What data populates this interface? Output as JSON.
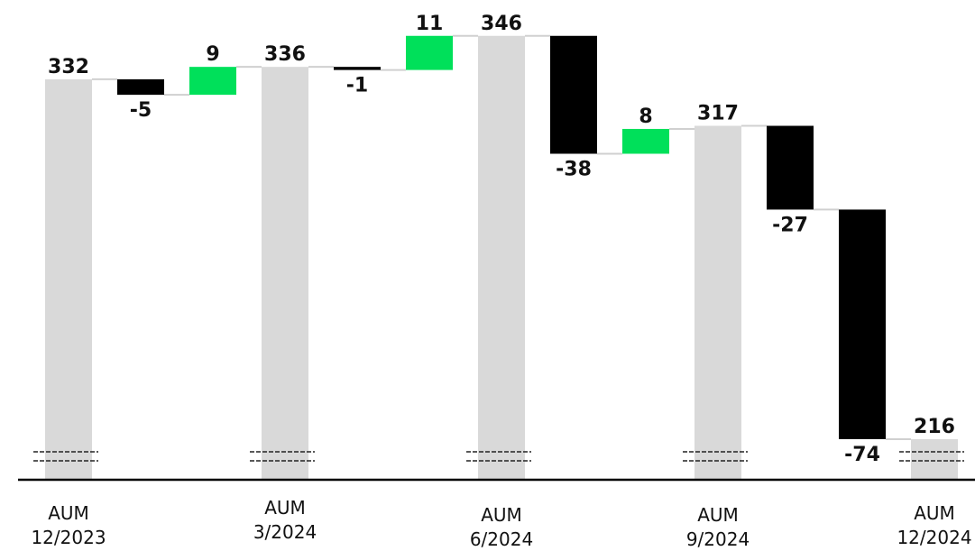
{
  "chart_data": {
    "type": "waterfall",
    "unit_note": "",
    "steps": [
      {
        "kind": "total",
        "value": 332,
        "label": "332",
        "category": [
          "AUM",
          "12/2023"
        ]
      },
      {
        "kind": "delta",
        "value": -5,
        "label": "-5"
      },
      {
        "kind": "delta",
        "value": 9,
        "label": "9"
      },
      {
        "kind": "total",
        "value": 336,
        "label": "336",
        "category": [
          "AUM",
          "3/2024"
        ]
      },
      {
        "kind": "delta",
        "value": -1,
        "label": "-1"
      },
      {
        "kind": "delta",
        "value": 11,
        "label": "11"
      },
      {
        "kind": "total",
        "value": 346,
        "label": "346",
        "category": [
          "AUM",
          "6/2024"
        ]
      },
      {
        "kind": "delta",
        "value": -38,
        "label": "-38"
      },
      {
        "kind": "delta",
        "value": 8,
        "label": "8"
      },
      {
        "kind": "total",
        "value": 317,
        "label": "317",
        "category": [
          "AUM",
          "9/2024"
        ]
      },
      {
        "kind": "delta",
        "value": -27,
        "label": "-27"
      },
      {
        "kind": "delta",
        "value": -74,
        "label": "-74"
      },
      {
        "kind": "total",
        "value": 216,
        "label": "216",
        "category": [
          "AUM",
          "12/2024"
        ]
      }
    ],
    "axis_break": true,
    "colors": {
      "total": "#d9d9d9",
      "increase": "#00e05a",
      "decrease": "#000000",
      "connector": "#d0d0d0",
      "axis": "#000000",
      "text": "#111111"
    }
  }
}
